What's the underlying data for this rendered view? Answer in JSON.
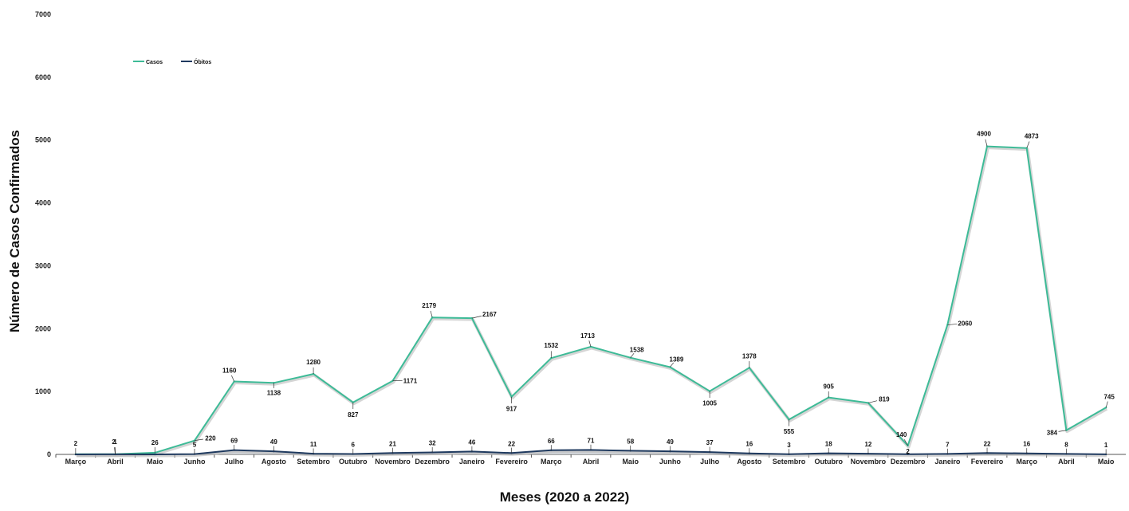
{
  "chart_data": {
    "type": "line",
    "title": "",
    "xlabel": "Meses (2020 a 2022)",
    "ylabel": "Número de Casos Confirmados",
    "ylim": [
      0,
      7000
    ],
    "yticks": [
      0,
      1000,
      2000,
      3000,
      4000,
      5000,
      6000,
      7000
    ],
    "grid": false,
    "legend_position": "top-left",
    "categories": [
      "Março",
      "Abril",
      "Maio",
      "Junho",
      "Julho",
      "Agosto",
      "Setembro",
      "Outubro",
      "Novembro",
      "Dezembro",
      "Janeiro",
      "Fevereiro",
      "Março",
      "Abril",
      "Maio",
      "Junho",
      "Julho",
      "Agosto",
      "Setembro",
      "Outubro",
      "Novembro",
      "Dezembro",
      "Janeiro",
      "Fevereiro",
      "Março",
      "Abril",
      "Maio"
    ],
    "series": [
      {
        "name": "Casos",
        "color": "#3dbb97",
        "values": [
          2,
          2,
          26,
          220,
          1160,
          1138,
          1280,
          827,
          1171,
          2179,
          2167,
          917,
          1532,
          1713,
          1538,
          1389,
          1005,
          1378,
          555,
          905,
          819,
          140,
          2060,
          4900,
          4873,
          384,
          745
        ]
      },
      {
        "name": "Óbitos",
        "color": "#1f3a5f",
        "values": [
          0,
          1,
          0,
          5,
          69,
          49,
          11,
          6,
          21,
          32,
          46,
          22,
          66,
          71,
          58,
          49,
          37,
          16,
          3,
          18,
          12,
          2,
          7,
          22,
          16,
          8,
          1
        ]
      }
    ]
  }
}
